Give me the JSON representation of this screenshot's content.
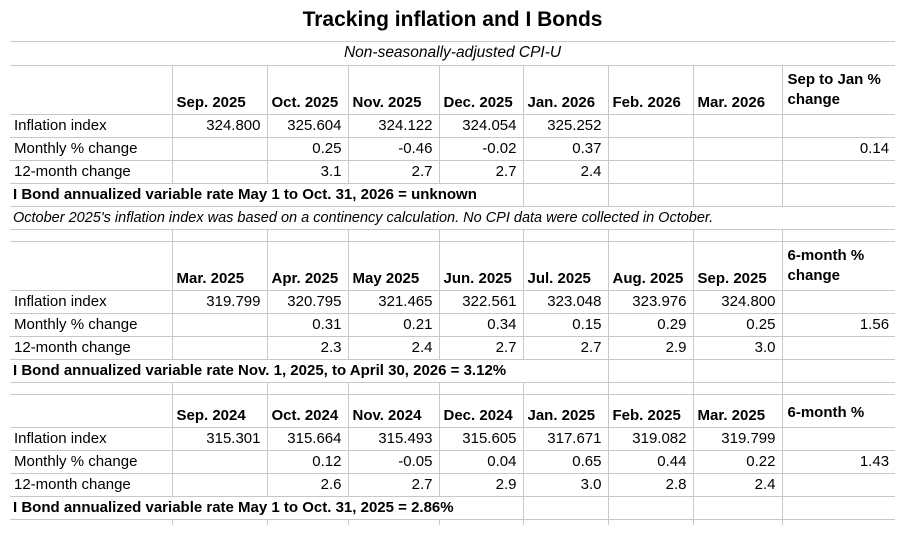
{
  "page": {
    "title": "Tracking inflation and I Bonds",
    "subtitle": "Non-seasonally-adjusted CPI-U"
  },
  "colors": {
    "background": "#ffffff",
    "gridline": "#c8c8c8",
    "text": "#000000"
  },
  "row_labels": [
    "Inflation index",
    "Monthly % change",
    "12-month change"
  ],
  "tables": [
    {
      "columns": [
        "",
        "Sep. 2025",
        "Oct. 2025",
        "Nov. 2025",
        "Dec. 2025",
        "Jan. 2026",
        "Feb. 2026",
        "Mar. 2026",
        "Sep to Jan % change"
      ],
      "rows": [
        {
          "label": "Inflation index",
          "values": [
            "324.800",
            "325.604",
            "324.122",
            "324.054",
            "325.252",
            "",
            "",
            ""
          ]
        },
        {
          "label": "Monthly % change",
          "values": [
            "",
            "0.25",
            "-0.46",
            "-0.02",
            "0.37",
            "",
            "",
            "0.14"
          ]
        },
        {
          "label": "12-month change",
          "values": [
            "",
            "3.1",
            "2.7",
            "2.7",
            "2.4",
            "",
            "",
            ""
          ]
        }
      ],
      "rate_line": "I Bond annualized variable rate May 1 to Oct. 31, 2026 = unknown",
      "note": "October 2025's inflation index was based on a continency calculation. No CPI data were collected in October."
    },
    {
      "columns": [
        "",
        "Mar. 2025",
        "Apr. 2025",
        "May 2025",
        "Jun. 2025",
        "Jul. 2025",
        "Aug. 2025",
        "Sep. 2025",
        "6-month % change"
      ],
      "rows": [
        {
          "label": "Inflation index",
          "values": [
            "319.799",
            "320.795",
            "321.465",
            "322.561",
            "323.048",
            "323.976",
            "324.800",
            ""
          ]
        },
        {
          "label": "Monthly % change",
          "values": [
            "",
            "0.31",
            "0.21",
            "0.34",
            "0.15",
            "0.29",
            "0.25",
            "1.56"
          ]
        },
        {
          "label": "12-month change",
          "values": [
            "",
            "2.3",
            "2.4",
            "2.7",
            "2.7",
            "2.9",
            "3.0",
            ""
          ]
        }
      ],
      "rate_line": "I Bond annualized variable rate Nov. 1, 2025, to April 30, 2026 = 3.12%",
      "note": ""
    },
    {
      "columns": [
        "",
        "Sep. 2024",
        "Oct. 2024",
        "Nov. 2024",
        "Dec. 2024",
        "Jan. 2025",
        "Feb. 2025",
        "Mar. 2025",
        "6-month %"
      ],
      "rows": [
        {
          "label": "Inflation index",
          "values": [
            "315.301",
            "315.664",
            "315.493",
            "315.605",
            "317.671",
            "319.082",
            "319.799",
            ""
          ]
        },
        {
          "label": "Monthly % change",
          "values": [
            "",
            "0.12",
            "-0.05",
            "0.04",
            "0.65",
            "0.44",
            "0.22",
            "1.43"
          ]
        },
        {
          "label": "12-month change",
          "values": [
            "",
            "2.6",
            "2.7",
            "2.9",
            "3.0",
            "2.8",
            "2.4",
            ""
          ]
        }
      ],
      "rate_line": "I Bond annualized variable rate May 1 to Oct. 31, 2025 = 2.86%",
      "note": ""
    }
  ]
}
